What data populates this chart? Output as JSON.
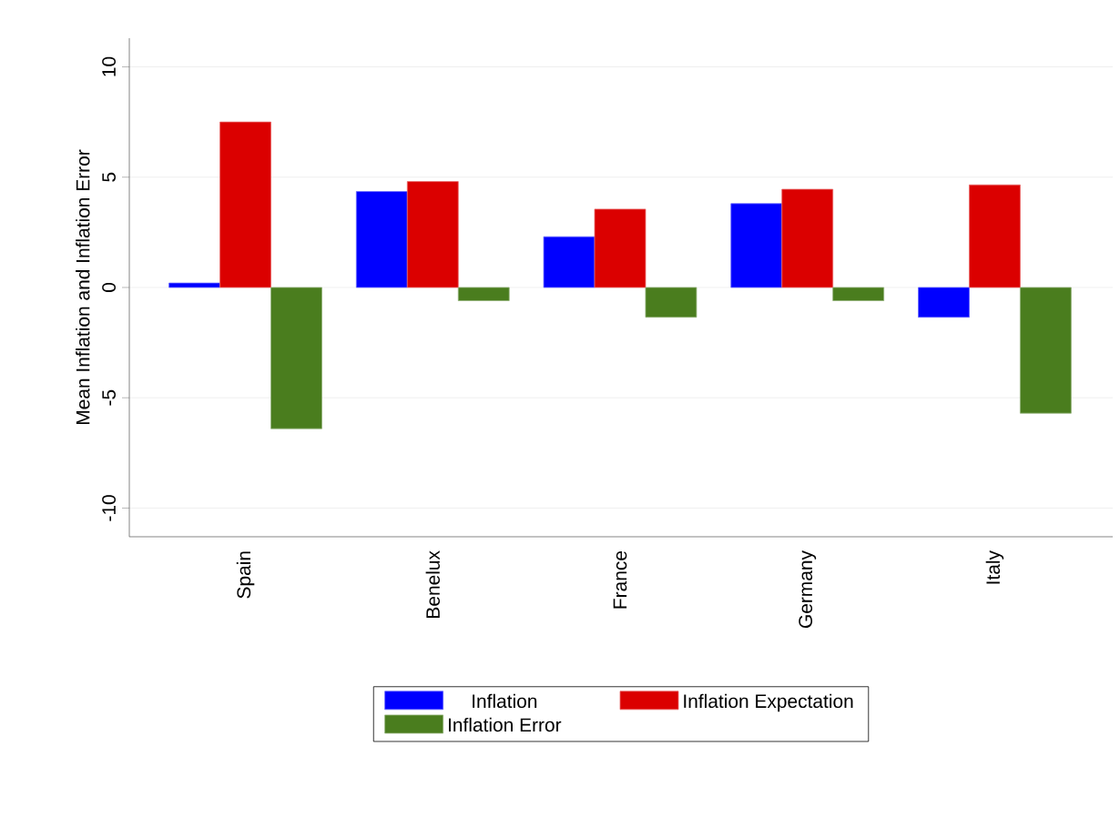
{
  "chart_data": {
    "type": "bar",
    "ylabel": "Mean Inflation and Inflation Error",
    "categories": [
      "Spain",
      "Benelux",
      "France",
      "Germany",
      "Italy"
    ],
    "series": [
      {
        "name": "Inflation",
        "color": "#0000ff",
        "values": [
          0.2,
          4.35,
          2.3,
          3.8,
          -1.35
        ]
      },
      {
        "name": "Inflation Expectation",
        "color": "#db0000",
        "values": [
          7.5,
          4.8,
          3.55,
          4.45,
          4.65
        ]
      },
      {
        "name": "Inflation Error",
        "color": "#4a7d1e",
        "values": [
          -6.4,
          -0.6,
          -1.35,
          -0.6,
          -5.7
        ]
      }
    ],
    "ylim": [
      -11.3,
      11.3
    ],
    "yticks": [
      -10,
      -5,
      0,
      5,
      10
    ],
    "grid": "y",
    "legend": "bottom"
  }
}
